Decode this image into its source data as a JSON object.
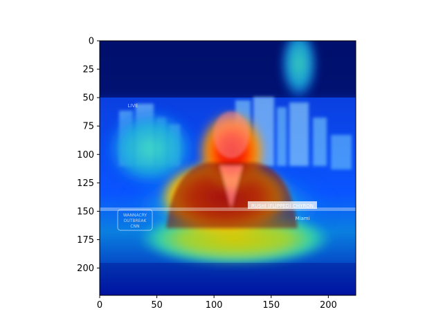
{
  "chart_data": {
    "type": "heatmap",
    "image_type": "attention heatmap overlay on a photo of a TV news frame (jet colormap)",
    "xlim": [
      0,
      224
    ],
    "ylim": [
      224,
      0
    ],
    "x_ticks": [
      0,
      50,
      100,
      150,
      200
    ],
    "y_ticks": [
      0,
      25,
      50,
      75,
      100,
      125,
      150,
      175,
      200
    ],
    "x_tick_labels": [
      "0",
      "50",
      "100",
      "150",
      "200"
    ],
    "y_tick_labels": [
      "0",
      "25",
      "50",
      "75",
      "100",
      "125",
      "150",
      "175",
      "200"
    ],
    "grid": false,
    "colormap": "jet",
    "image_texts": {
      "lower_third": "RUSHI (FLIPPED) CHYRON",
      "location": "Miami",
      "badge_line1": "WANNACRY",
      "badge_line2": "OUTBREAK",
      "badge_line3": "CNN",
      "corner_tag": "LIVE"
    },
    "hotspots": [
      {
        "label": "face",
        "cx": 115,
        "cy": 105,
        "rx": 28,
        "ry": 32,
        "intensity": 1.0
      },
      {
        "label": "torso",
        "cx": 110,
        "cy": 140,
        "rx": 55,
        "ry": 30,
        "intensity": 0.85
      },
      {
        "label": "lower-band",
        "cx": 120,
        "cy": 170,
        "rx": 80,
        "ry": 22,
        "intensity": 0.6
      },
      {
        "label": "top-right-streak",
        "cx": 175,
        "cy": 20,
        "rx": 15,
        "ry": 30,
        "intensity": 0.45
      },
      {
        "label": "left-buildings",
        "cx": 45,
        "cy": 95,
        "rx": 35,
        "ry": 30,
        "intensity": 0.45
      }
    ],
    "colors": {
      "jet_dark": "#000066",
      "jet_blue": "#0033cc",
      "jet_cyan": "#22cccc",
      "jet_yellow": "#e6d200",
      "jet_red": "#e00000"
    }
  }
}
